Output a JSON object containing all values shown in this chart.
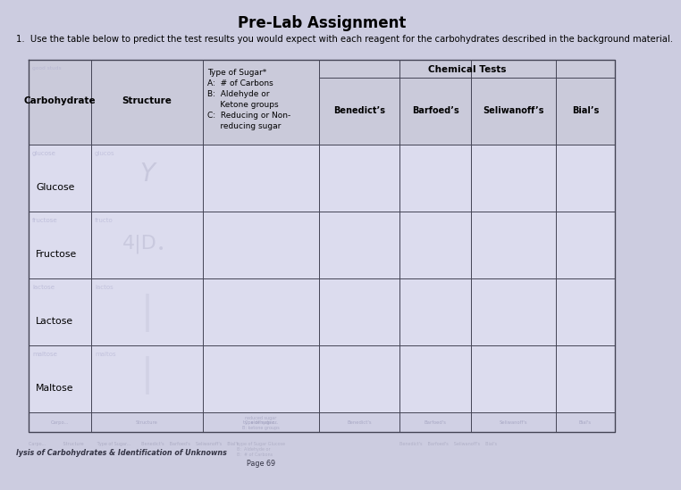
{
  "title": "Pre-Lab Assignment",
  "question_text": "1.  Use the table below to predict the test results you would expect with each reagent for the carbohydrates described in the background material.",
  "chemical_tests_label": "Chemical Tests",
  "col0_header": "Carbohydrate",
  "col1_header": "Structure",
  "col2_header": "Type of Sugar*\nA:  # of Carbons\nB:  Aldehyde or\n     Ketone groups\nC:  Reducing or Non-\n     reducing sugar",
  "sub_headers": [
    "Benedict’s",
    "Barfoed’s",
    "Seliwanoff’s",
    "Bial’s"
  ],
  "rows": [
    "Glucose",
    "Fructose",
    "Lactose",
    "Maltose"
  ],
  "footer_left": "lysis of Carbohydrates & Identification of Unknowns",
  "footer_center": "Page 69",
  "background_color": "#cccce0",
  "cell_background": "#dcdcee",
  "header_background": "#cacada",
  "line_color": "#444455",
  "title_fontsize": 12,
  "question_fontsize": 7.2,
  "header_fontsize": 7.5,
  "subheader_fontsize": 7.0,
  "row_label_fontsize": 7.8,
  "footer_fontsize": 5.8,
  "ghost_color": "#aaaacc",
  "ghost_fontsize": 5.0
}
